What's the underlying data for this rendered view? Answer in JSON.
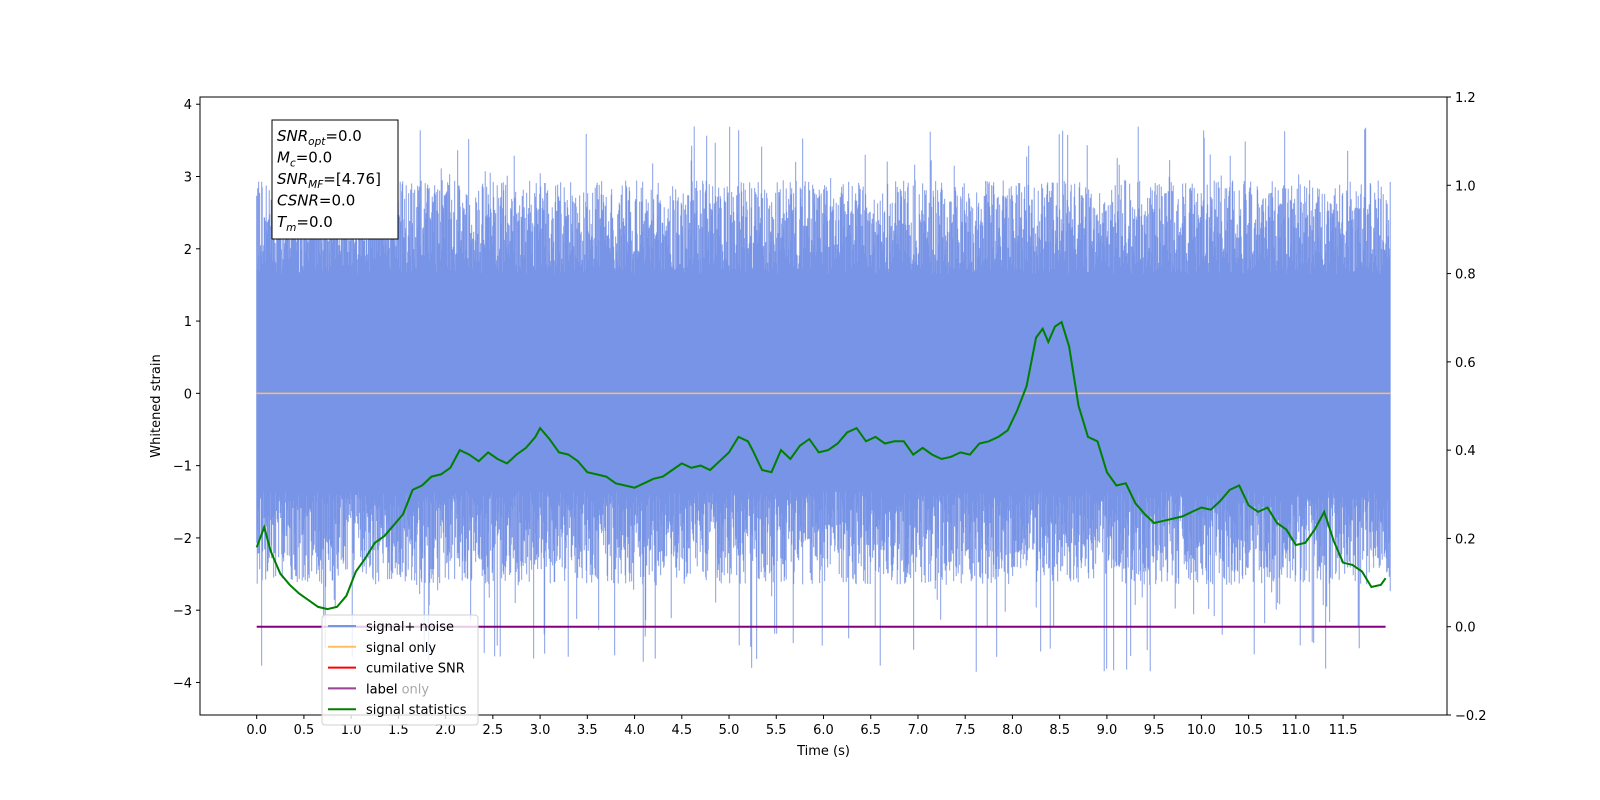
{
  "chart_data": {
    "type": "line",
    "xlabel": "Time (s)",
    "ylabel": "Whitened strain",
    "xlim": [
      -0.6,
      12.6
    ],
    "ylim": [
      -4.45,
      4.1
    ],
    "y2lim": [
      -0.2,
      1.2
    ],
    "xticks": [
      "0.0",
      "0.5",
      "1.0",
      "1.5",
      "2.0",
      "2.5",
      "3.0",
      "3.5",
      "4.0",
      "4.5",
      "5.0",
      "5.5",
      "6.0",
      "6.5",
      "7.0",
      "7.5",
      "8.0",
      "8.5",
      "9.0",
      "9.5",
      "10.0",
      "10.5",
      "11.0",
      "11.5"
    ],
    "yticks": [
      "4",
      "3",
      "2",
      "1",
      "0",
      "−1",
      "−2",
      "−3",
      "−4"
    ],
    "y2ticks": [
      "1.2",
      "1.0",
      "0.8",
      "0.6",
      "0.4",
      "0.2",
      "0.0",
      "−0.2"
    ],
    "annotation": [
      {
        "base": "SNR",
        "sub": "opt",
        "rest": "=0.0"
      },
      {
        "base": "M",
        "sub": "c",
        "rest": "=0.0"
      },
      {
        "base": "SNR",
        "sub": "MF",
        "rest": "=[4.76]"
      },
      {
        "base": "CSNR",
        "sub": "",
        "rest": "=0.0"
      },
      {
        "base": "T",
        "sub": "m",
        "rest": "=0.0"
      }
    ],
    "legend_position": "lower-left",
    "noise_band": {
      "x_start": 0.0,
      "x_end": 12.0,
      "typical_min": -2.0,
      "typical_max": 2.3,
      "extreme_min": -3.9,
      "extreme_max": 3.7
    },
    "series": [
      {
        "name": "signal+ noise",
        "color": "#7894e6",
        "axis": "left"
      },
      {
        "name": "signal only",
        "color": "#ffbf60",
        "axis": "left",
        "x": [
          0.0,
          12.0
        ],
        "values": [
          0.0,
          0.0
        ]
      },
      {
        "name": "cumilative SNR",
        "color": "#ff0000",
        "axis": "left"
      },
      {
        "name": "label",
        "color": "#800080",
        "axis": "right",
        "x": [
          0.0,
          11.95
        ],
        "values": [
          0.0,
          0.0
        ]
      },
      {
        "name": "label only",
        "color": "#cccccc",
        "axis": "right"
      },
      {
        "name": "signal statistics",
        "color": "#008000",
        "axis": "right",
        "x": [
          0.0,
          0.08,
          0.15,
          0.25,
          0.35,
          0.45,
          0.55,
          0.65,
          0.75,
          0.85,
          0.95,
          1.05,
          1.15,
          1.25,
          1.35,
          1.45,
          1.55,
          1.65,
          1.75,
          1.85,
          1.95,
          2.05,
          2.15,
          2.25,
          2.35,
          2.45,
          2.55,
          2.65,
          2.75,
          2.85,
          2.95,
          3.0,
          3.1,
          3.2,
          3.3,
          3.4,
          3.5,
          3.6,
          3.7,
          3.8,
          3.9,
          4.0,
          4.1,
          4.2,
          4.3,
          4.4,
          4.5,
          4.6,
          4.7,
          4.8,
          4.9,
          5.0,
          5.1,
          5.2,
          5.25,
          5.35,
          5.45,
          5.55,
          5.65,
          5.75,
          5.85,
          5.95,
          6.05,
          6.15,
          6.25,
          6.35,
          6.45,
          6.55,
          6.65,
          6.75,
          6.85,
          6.95,
          7.05,
          7.15,
          7.25,
          7.35,
          7.45,
          7.55,
          7.65,
          7.75,
          7.85,
          7.95,
          8.05,
          8.15,
          8.25,
          8.32,
          8.38,
          8.45,
          8.52,
          8.6,
          8.7,
          8.8,
          8.9,
          9.0,
          9.1,
          9.2,
          9.3,
          9.4,
          9.5,
          9.6,
          9.7,
          9.8,
          9.9,
          10.0,
          10.1,
          10.2,
          10.3,
          10.4,
          10.5,
          10.6,
          10.7,
          10.8,
          10.9,
          11.0,
          11.1,
          11.2,
          11.3,
          11.4,
          11.5,
          11.6,
          11.7,
          11.8,
          11.9,
          11.95
        ],
        "values": [
          0.18,
          0.225,
          0.17,
          0.12,
          0.095,
          0.075,
          0.06,
          0.045,
          0.04,
          0.045,
          0.07,
          0.125,
          0.155,
          0.19,
          0.205,
          0.23,
          0.255,
          0.31,
          0.32,
          0.34,
          0.345,
          0.36,
          0.4,
          0.39,
          0.375,
          0.395,
          0.38,
          0.37,
          0.39,
          0.405,
          0.43,
          0.45,
          0.425,
          0.395,
          0.39,
          0.375,
          0.35,
          0.345,
          0.34,
          0.325,
          0.32,
          0.315,
          0.325,
          0.335,
          0.34,
          0.355,
          0.37,
          0.36,
          0.365,
          0.355,
          0.375,
          0.395,
          0.43,
          0.42,
          0.4,
          0.355,
          0.35,
          0.4,
          0.38,
          0.41,
          0.425,
          0.395,
          0.4,
          0.415,
          0.44,
          0.45,
          0.42,
          0.43,
          0.415,
          0.42,
          0.42,
          0.39,
          0.405,
          0.39,
          0.38,
          0.385,
          0.395,
          0.39,
          0.415,
          0.42,
          0.43,
          0.445,
          0.49,
          0.545,
          0.655,
          0.675,
          0.645,
          0.68,
          0.69,
          0.635,
          0.5,
          0.43,
          0.42,
          0.35,
          0.32,
          0.325,
          0.28,
          0.255,
          0.235,
          0.24,
          0.245,
          0.25,
          0.26,
          0.27,
          0.265,
          0.285,
          0.31,
          0.32,
          0.275,
          0.26,
          0.27,
          0.235,
          0.22,
          0.185,
          0.19,
          0.22,
          0.26,
          0.195,
          0.145,
          0.14,
          0.125,
          0.09,
          0.095,
          0.11
        ]
      }
    ]
  }
}
